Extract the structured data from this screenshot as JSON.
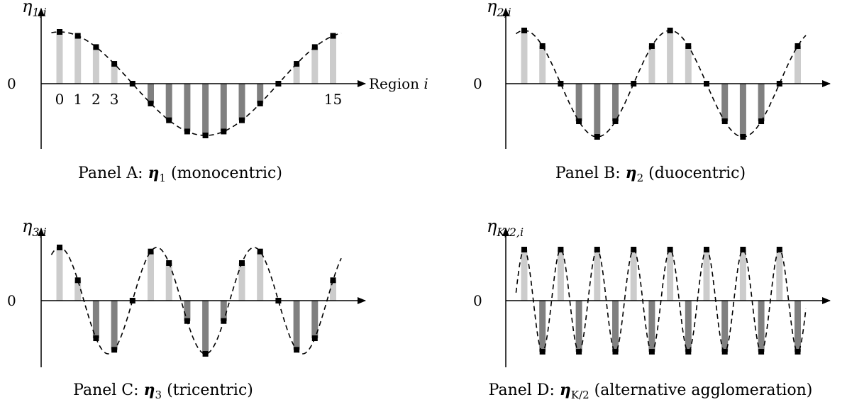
{
  "chart_data": [
    {
      "type": "bar",
      "panel": "A",
      "caption_prefix": "Panel A: ",
      "caption_sub": "1",
      "caption_suffix": " (monocentric)",
      "ylabel_sub": "1,i",
      "xlabel": "Region i",
      "zero_label": "0",
      "tick_labels": [
        {
          "i": 0,
          "text": "0"
        },
        {
          "i": 1,
          "text": "1"
        },
        {
          "i": 2,
          "text": "2"
        },
        {
          "i": 3,
          "text": "3"
        },
        {
          "i": 15,
          "text": "15"
        }
      ],
      "x": [
        0,
        1,
        2,
        3,
        4,
        5,
        6,
        7,
        8,
        9,
        10,
        11,
        12,
        13,
        14,
        15
      ],
      "values": [
        1.0,
        0.924,
        0.707,
        0.383,
        0.0,
        -0.383,
        -0.707,
        -0.924,
        -1.0,
        -0.924,
        -0.707,
        -0.383,
        0.0,
        0.383,
        0.707,
        0.924
      ],
      "curve_cycles": 1,
      "ylim": [
        -1.25,
        1.25
      ]
    },
    {
      "type": "bar",
      "panel": "B",
      "caption_prefix": "Panel B: ",
      "caption_sub": "2",
      "caption_suffix": " (duocentric)",
      "ylabel_sub": "2,i",
      "zero_label": "0",
      "x": [
        0,
        1,
        2,
        3,
        4,
        5,
        6,
        7,
        8,
        9,
        10,
        11,
        12,
        13,
        14,
        15
      ],
      "values": [
        1.0,
        0.707,
        0.0,
        -0.707,
        -1.0,
        -0.707,
        0.0,
        0.707,
        1.0,
        0.707,
        0.0,
        -0.707,
        -1.0,
        -0.707,
        0.0,
        0.707
      ],
      "curve_cycles": 2,
      "ylim": [
        -1.25,
        1.25
      ]
    },
    {
      "type": "bar",
      "panel": "C",
      "caption_prefix": "Panel C: ",
      "caption_sub": "3",
      "caption_suffix": " (tricentric)",
      "ylabel_sub": "3,i",
      "zero_label": "0",
      "x": [
        0,
        1,
        2,
        3,
        4,
        5,
        6,
        7,
        8,
        9,
        10,
        11,
        12,
        13,
        14,
        15
      ],
      "values": [
        1.0,
        0.383,
        -0.707,
        -0.924,
        0.0,
        0.924,
        0.707,
        -0.383,
        -1.0,
        -0.383,
        0.707,
        0.924,
        0.0,
        -0.924,
        -0.707,
        0.383
      ],
      "curve_cycles": 3,
      "ylim": [
        -1.25,
        1.25
      ]
    },
    {
      "type": "bar",
      "panel": "D",
      "caption_prefix": "Panel D: ",
      "caption_sub": "K/2",
      "caption_suffix": " (alternative agglomeration)",
      "ylabel_sub": "K/2,i",
      "zero_label": "0",
      "x": [
        0,
        1,
        2,
        3,
        4,
        5,
        6,
        7,
        8,
        9,
        10,
        11,
        12,
        13,
        14,
        15
      ],
      "values": [
        1,
        -1,
        1,
        -1,
        1,
        -1,
        1,
        -1,
        1,
        -1,
        1,
        -1,
        1,
        -1,
        1,
        -1
      ],
      "curve_cycles": 8,
      "ylim": [
        -1.25,
        1.25
      ]
    }
  ],
  "colors": {
    "positive_bar": "#cccccc",
    "negative_bar": "#808080",
    "marker": "#000000",
    "curve": "#000000",
    "axis": "#000000"
  },
  "symbol": "η"
}
